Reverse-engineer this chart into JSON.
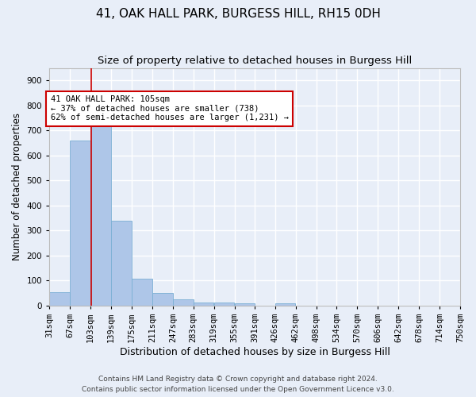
{
  "title1": "41, OAK HALL PARK, BURGESS HILL, RH15 0DH",
  "title2": "Size of property relative to detached houses in Burgess Hill",
  "xlabel": "Distribution of detached houses by size in Burgess Hill",
  "ylabel": "Number of detached properties",
  "footnote1": "Contains HM Land Registry data © Crown copyright and database right 2024.",
  "footnote2": "Contains public sector information licensed under the Open Government Licence v3.0.",
  "bin_edges": [
    31,
    67,
    103,
    139,
    175,
    211,
    247,
    283,
    319,
    355,
    391,
    426,
    462,
    498,
    534,
    570,
    606,
    642,
    678,
    714,
    750
  ],
  "bar_heights": [
    55,
    660,
    750,
    338,
    108,
    52,
    25,
    14,
    12,
    9,
    0,
    9,
    0,
    0,
    0,
    0,
    0,
    0,
    0,
    0
  ],
  "bar_color": "#aec6e8",
  "bar_edge_color": "#7aafd4",
  "property_size": 105,
  "vline_color": "#cc0000",
  "annotation_text": "41 OAK HALL PARK: 105sqm\n← 37% of detached houses are smaller (738)\n62% of semi-detached houses are larger (1,231) →",
  "annotation_box_color": "#ffffff",
  "annotation_box_edge": "#cc0000",
  "ylim": [
    0,
    950
  ],
  "yticks": [
    0,
    100,
    200,
    300,
    400,
    500,
    600,
    700,
    800,
    900
  ],
  "bg_color": "#e8eef8",
  "plot_bg_color": "#e8eef8",
  "grid_color": "#ffffff",
  "title1_fontsize": 11,
  "title2_fontsize": 9.5,
  "xlabel_fontsize": 9,
  "ylabel_fontsize": 8.5,
  "tick_fontsize": 7.5,
  "annot_fontsize": 7.5
}
